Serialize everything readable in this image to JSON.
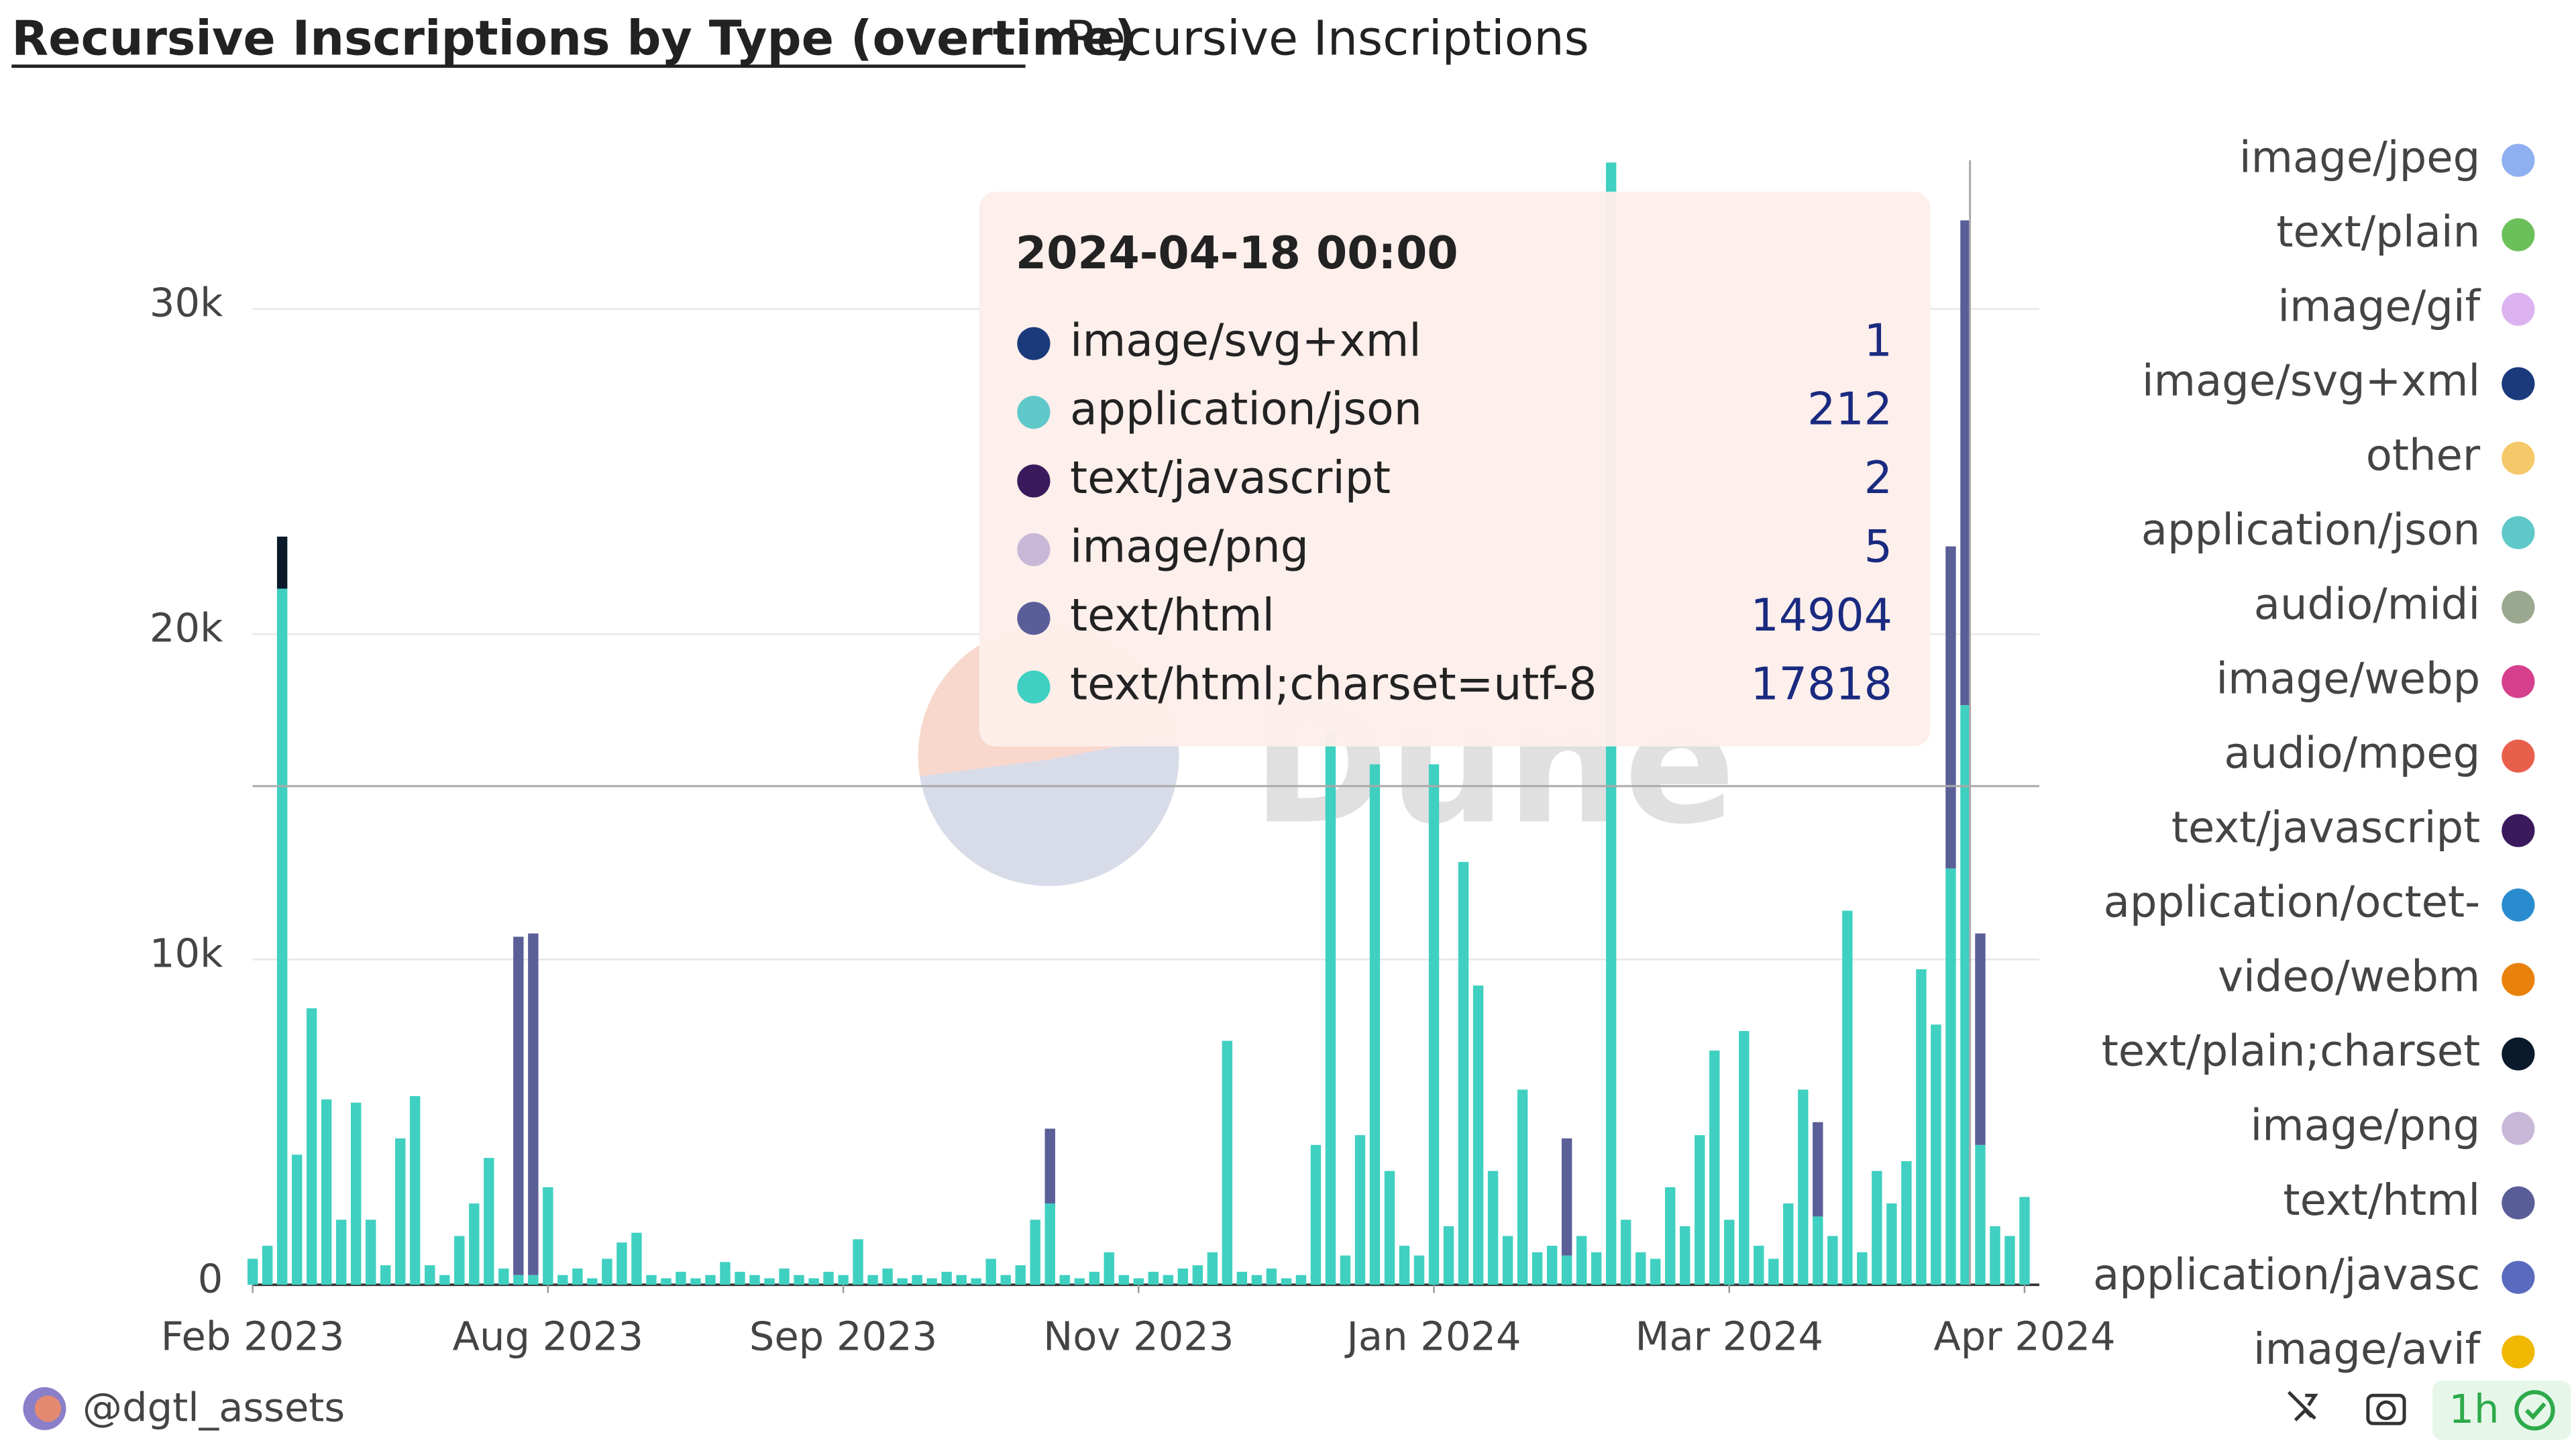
{
  "chart_data": {
    "type": "bar",
    "stacked": true,
    "title": "Recursive Inscriptions by Type (overtime)",
    "subtitle": "Recursive Inscriptions",
    "watermark": "Dune",
    "author": "@dgtl_assets",
    "refresh": "1h",
    "xlim": [
      0,
      121
    ],
    "xticks": [
      {
        "value": 0,
        "label": "Feb 2023"
      },
      {
        "value": 20,
        "label": "Aug 2023"
      },
      {
        "value": 40,
        "label": "Sep 2023"
      },
      {
        "value": 60,
        "label": "Nov 2023"
      },
      {
        "value": 80,
        "label": "Jan 2024"
      },
      {
        "value": 100,
        "label": "Mar 2024"
      },
      {
        "value": 120,
        "label": "Apr 2024"
      }
    ],
    "ylim": [
      0,
      35000
    ],
    "yticks": [
      0,
      {
        "value": 10000,
        "label": "10k"
      },
      {
        "value": 20000,
        "label": "20k"
      },
      {
        "value": 30000,
        "label": "30k"
      }
    ],
    "grid": true,
    "series": [
      {
        "name": "text/html;charset=utf-8",
        "color": "#3fd0c1",
        "values": [
          800,
          1200,
          21400,
          4000,
          8500,
          5700,
          2000,
          5600,
          2000,
          600,
          4500,
          5800,
          600,
          300,
          1500,
          2500,
          3900,
          500,
          300,
          300,
          3000,
          300,
          500,
          200,
          800,
          1300,
          1600,
          300,
          200,
          400,
          200,
          300,
          700,
          400,
          300,
          200,
          500,
          300,
          200,
          400,
          300,
          1400,
          300,
          500,
          200,
          300,
          200,
          400,
          300,
          200,
          800,
          300,
          600,
          2000,
          2500,
          300,
          200,
          400,
          1000,
          300,
          200,
          400,
          300,
          500,
          600,
          1000,
          7500,
          400,
          300,
          500,
          200,
          300,
          4300,
          17000,
          900,
          4600,
          16000,
          3500,
          1200,
          900,
          16000,
          1800,
          13000,
          9200,
          3500,
          1500,
          6000,
          1000,
          1200,
          900,
          1500,
          1000,
          34500,
          2000,
          1000,
          800,
          3000,
          1800,
          4600,
          7200,
          2000,
          7800,
          1200,
          800,
          2500,
          6000,
          2100,
          1500,
          11500,
          1000,
          3500,
          2500,
          3800,
          9700,
          8000,
          12800,
          17818,
          4300,
          1800,
          1500,
          2700
        ]
      },
      {
        "name": "text/html",
        "color": "#5b5f97",
        "values": [
          0,
          0,
          0,
          0,
          0,
          0,
          0,
          0,
          0,
          0,
          0,
          0,
          0,
          0,
          0,
          0,
          0,
          0,
          10400,
          10500,
          0,
          0,
          0,
          0,
          0,
          0,
          0,
          0,
          0,
          0,
          0,
          0,
          0,
          0,
          0,
          0,
          0,
          0,
          0,
          0,
          0,
          0,
          0,
          0,
          0,
          0,
          0,
          0,
          0,
          0,
          0,
          0,
          0,
          0,
          2300,
          0,
          0,
          0,
          0,
          0,
          0,
          0,
          0,
          0,
          0,
          0,
          0,
          0,
          0,
          0,
          0,
          0,
          0,
          0,
          0,
          0,
          0,
          0,
          0,
          0,
          0,
          0,
          0,
          0,
          0,
          0,
          0,
          0,
          0,
          3600,
          0,
          0,
          0,
          0,
          0,
          0,
          0,
          0,
          0,
          0,
          0,
          0,
          0,
          0,
          0,
          0,
          2900,
          0,
          0,
          0,
          0,
          0,
          0,
          0,
          0,
          9900,
          14904,
          6500,
          0,
          0,
          0
        ]
      },
      {
        "name": "text/plain;charset",
        "color": "#0a1a2a",
        "values": [
          0,
          0,
          1600,
          0,
          0,
          0,
          0,
          0,
          0,
          0,
          0,
          0,
          0,
          0,
          0,
          0,
          0,
          0,
          0,
          0,
          0,
          0,
          0,
          0,
          0,
          0,
          0,
          0,
          0,
          0,
          0,
          0,
          0,
          0,
          0,
          0,
          0,
          0,
          0,
          0,
          0,
          0,
          0,
          0,
          0,
          0,
          0,
          0,
          0,
          0,
          0,
          0,
          0,
          0,
          0,
          0,
          0,
          0,
          0,
          0,
          0,
          0,
          0,
          0,
          0,
          0,
          0,
          0,
          0,
          0,
          0,
          0,
          0,
          0,
          0,
          0,
          0,
          0,
          0,
          0,
          0,
          0,
          0,
          0,
          0,
          0,
          0,
          0,
          0,
          0,
          0,
          0,
          0,
          0,
          0,
          0,
          0,
          0,
          0,
          0,
          0,
          0,
          0,
          0,
          0,
          0,
          0,
          0,
          0,
          0,
          0,
          0,
          0,
          0,
          0,
          0,
          0,
          0,
          0,
          0,
          0
        ]
      }
    ],
    "legend": [
      {
        "name": "image/jpeg",
        "color": "#8fb0f0"
      },
      {
        "name": "text/plain",
        "color": "#6cc05a"
      },
      {
        "name": "image/gif",
        "color": "#dcb2f0"
      },
      {
        "name": "image/svg+xml",
        "color": "#1a3a7c"
      },
      {
        "name": "other",
        "color": "#f5c96a"
      },
      {
        "name": "application/json",
        "color": "#5fc8c8"
      },
      {
        "name": "audio/midi",
        "color": "#9aa890"
      },
      {
        "name": "image/webp",
        "color": "#d63f8c"
      },
      {
        "name": "audio/mpeg",
        "color": "#e8604c"
      },
      {
        "name": "text/javascript",
        "color": "#3a1a5c"
      },
      {
        "name": "application/octet-",
        "color": "#2a8cd0"
      },
      {
        "name": "video/webm",
        "color": "#e8820c"
      },
      {
        "name": "text/plain;charset",
        "color": "#0a1a2a"
      },
      {
        "name": "image/png",
        "color": "#c8b8d8"
      },
      {
        "name": "text/html",
        "color": "#5a5e98"
      },
      {
        "name": "application/javasc",
        "color": "#5a6abf"
      },
      {
        "name": "image/avif",
        "color": "#f0b800"
      }
    ],
    "tooltip": {
      "title": "2024-04-18 00:00",
      "rows": [
        {
          "name": "image/svg+xml",
          "color": "#1a3a7c",
          "value": 1
        },
        {
          "name": "application/json",
          "color": "#5fc8c8",
          "value": 212
        },
        {
          "name": "text/javascript",
          "color": "#3a1a5c",
          "value": 2
        },
        {
          "name": "image/png",
          "color": "#c8b8d8",
          "value": 5
        },
        {
          "name": "text/html",
          "color": "#5a5e98",
          "value": 14904
        },
        {
          "name": "text/html;charset=utf-8",
          "color": "#3fd0c1",
          "value": 17818
        }
      ]
    }
  }
}
